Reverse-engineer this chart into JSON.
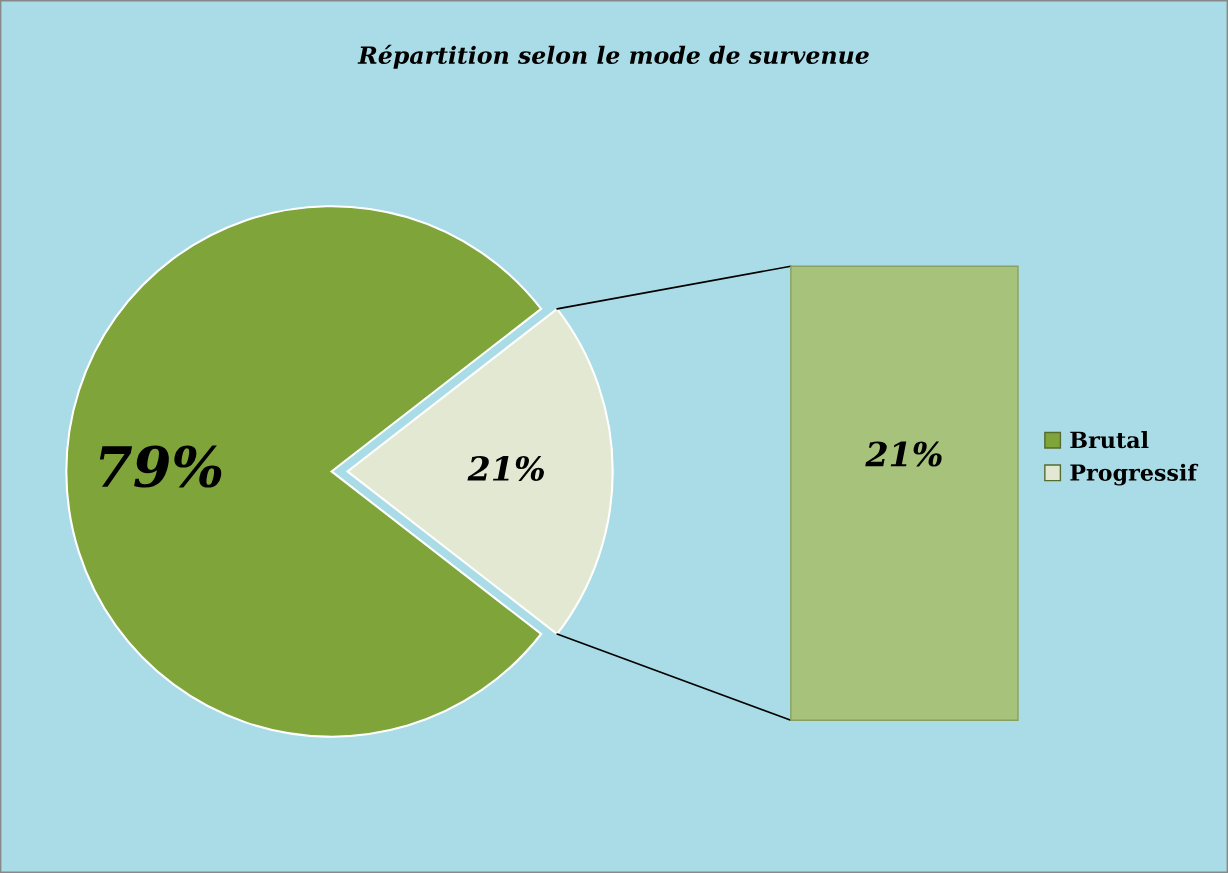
{
  "chart_data": {
    "type": "pie",
    "title": "Répartition selon le mode de survenue",
    "categories": [
      "Brutal",
      "Progressif"
    ],
    "values": [
      79,
      21
    ],
    "colors": [
      "#7ea43a",
      "#e3e8d2"
    ],
    "value_labels": [
      "79%",
      "21%"
    ],
    "legend": "right",
    "annotations": [
      "21%"
    ]
  }
}
